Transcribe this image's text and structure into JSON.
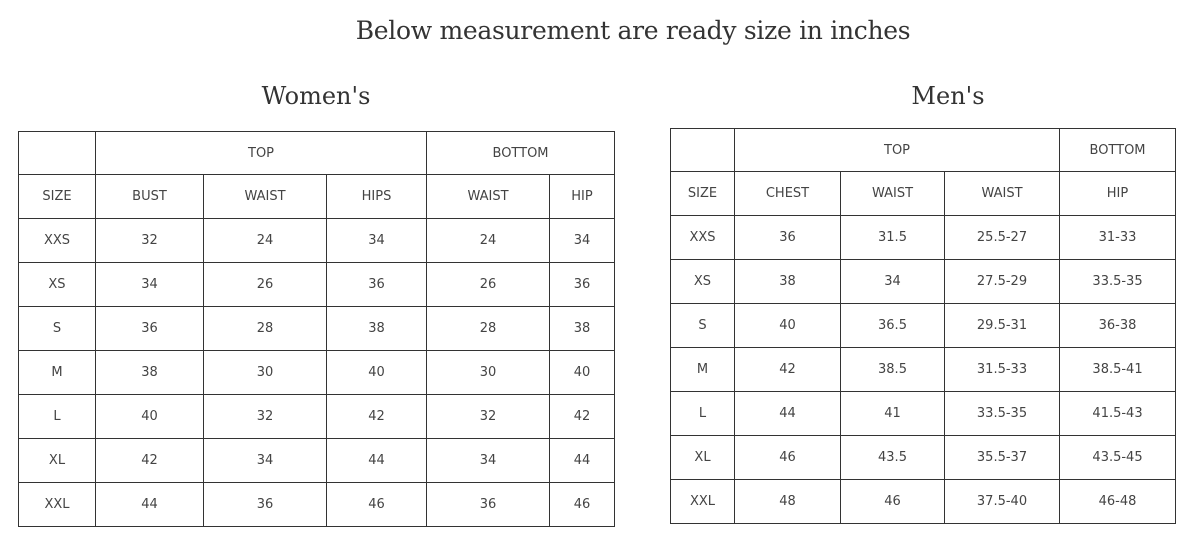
{
  "title": "Below measurement are ready size in inches",
  "women": {
    "heading": "Women's",
    "groups": {
      "top": "TOP",
      "bottom": "BOTTOM"
    },
    "columns": [
      "SIZE",
      "BUST",
      "WAIST",
      "HIPS",
      "WAIST",
      "HIP"
    ],
    "rows": [
      [
        "XXS",
        "32",
        "24",
        "34",
        "24",
        "34"
      ],
      [
        "XS",
        "34",
        "26",
        "36",
        "26",
        "36"
      ],
      [
        "S",
        "36",
        "28",
        "38",
        "28",
        "38"
      ],
      [
        "M",
        "38",
        "30",
        "40",
        "30",
        "40"
      ],
      [
        "L",
        "40",
        "32",
        "42",
        "32",
        "42"
      ],
      [
        "XL",
        "42",
        "34",
        "44",
        "34",
        "44"
      ],
      [
        "XXL",
        "44",
        "36",
        "46",
        "36",
        "46"
      ]
    ]
  },
  "men": {
    "heading": "Men's",
    "groups": {
      "top": "TOP",
      "bottom": "BOTTOM"
    },
    "columns": [
      "SIZE",
      "CHEST",
      "WAIST",
      "WAIST",
      "HIP"
    ],
    "rows": [
      [
        "XXS",
        "36",
        "31.5",
        "25.5-27",
        "31-33"
      ],
      [
        "XS",
        "38",
        "34",
        "27.5-29",
        "33.5-35"
      ],
      [
        "S",
        "40",
        "36.5",
        "29.5-31",
        "36-38"
      ],
      [
        "M",
        "42",
        "38.5",
        "31.5-33",
        "38.5-41"
      ],
      [
        "L",
        "44",
        "41",
        "33.5-35",
        "41.5-43"
      ],
      [
        "XL",
        "46",
        "43.5",
        "35.5-37",
        "43.5-45"
      ],
      [
        "XXL",
        "48",
        "46",
        "37.5-40",
        "46-48"
      ]
    ]
  }
}
